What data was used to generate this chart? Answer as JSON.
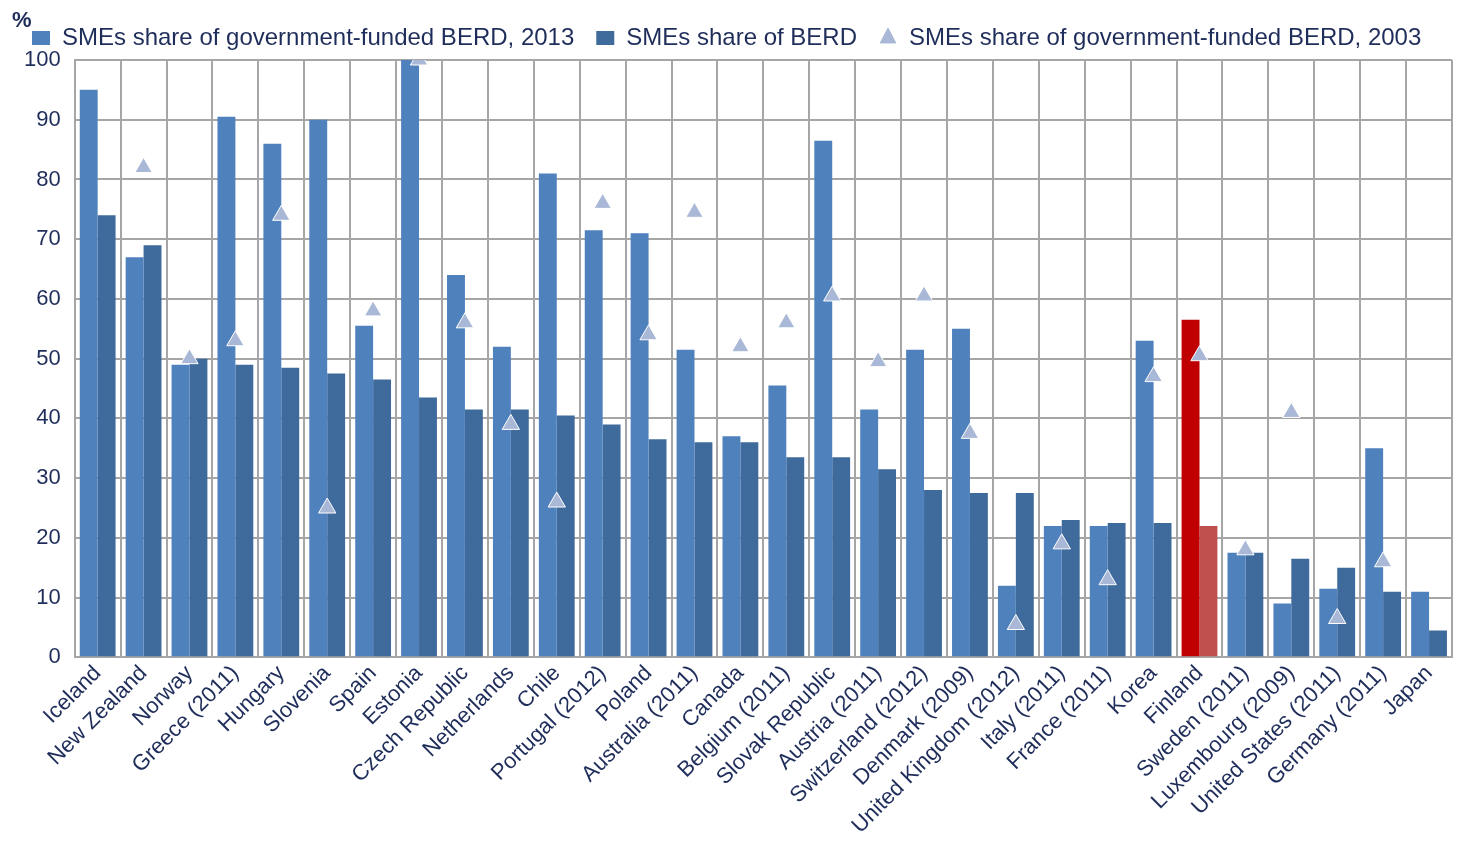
{
  "chart_data": {
    "type": "bar",
    "ylabel": "%",
    "categories": [
      "Iceland",
      "New Zealand",
      "Norway",
      "Greece (2011)",
      "Hungary",
      "Slovenia",
      "Spain",
      "Estonia",
      "Czech Republic",
      "Netherlands",
      "Chile",
      "Portugal (2012)",
      "Poland",
      "Australia (2011)",
      "Canada",
      "Belgium (2011)",
      "Slovak Republic",
      "Austria (2011)",
      "Switzerland (2012)",
      "Denmark (2009)",
      "United Kingdom (2012)",
      "Italy (2011)",
      "France (2011)",
      "Korea",
      "Finland",
      "Sweden (2011)",
      "Luxembourg (2009)",
      "United States (2011)",
      "Germany (2011)",
      "Japan"
    ],
    "series": [
      {
        "name": "SMEs share of government-funded BERD, 2013",
        "color": "#4f81bd",
        "colors": [
          "#4f81bd",
          "#4f81bd",
          "#4f81bd",
          "#4f81bd",
          "#4f81bd",
          "#4f81bd",
          "#4f81bd",
          "#4f81bd",
          "#4f81bd",
          "#4f81bd",
          "#4f81bd",
          "#4f81bd",
          "#4f81bd",
          "#4f81bd",
          "#4f81bd",
          "#4f81bd",
          "#4f81bd",
          "#4f81bd",
          "#4f81bd",
          "#4f81bd",
          "#4f81bd",
          "#4f81bd",
          "#4f81bd",
          "#4f81bd",
          "#c00000",
          "#4f81bd",
          "#4f81bd",
          "#4f81bd",
          "#4f81bd",
          "#4f81bd"
        ],
        "values": [
          95,
          67,
          49,
          90.5,
          86,
          90,
          55.5,
          100,
          64,
          52,
          81,
          71.5,
          71,
          51.5,
          37,
          45.5,
          86.5,
          41.5,
          51.5,
          55,
          12,
          22,
          22,
          53,
          56.5,
          17.5,
          9,
          11.5,
          35,
          11
        ]
      },
      {
        "name": "SMEs share of BERD",
        "color": "#3f6a9c",
        "colors": [
          "#3f6a9c",
          "#3f6a9c",
          "#3f6a9c",
          "#3f6a9c",
          "#3f6a9c",
          "#3f6a9c",
          "#3f6a9c",
          "#3f6a9c",
          "#3f6a9c",
          "#3f6a9c",
          "#3f6a9c",
          "#3f6a9c",
          "#3f6a9c",
          "#3f6a9c",
          "#3f6a9c",
          "#3f6a9c",
          "#3f6a9c",
          "#3f6a9c",
          "#3f6a9c",
          "#3f6a9c",
          "#3f6a9c",
          "#3f6a9c",
          "#3f6a9c",
          "#3f6a9c",
          "#c0504d",
          "#3f6a9c",
          "#3f6a9c",
          "#3f6a9c",
          "#3f6a9c",
          "#3f6a9c"
        ],
        "values": [
          74,
          69,
          50,
          49,
          48.5,
          47.5,
          46.5,
          43.5,
          41.5,
          41.5,
          40.5,
          39,
          36.5,
          36,
          36,
          33.5,
          33.5,
          31.5,
          28,
          27.5,
          27.5,
          23,
          22.5,
          22.5,
          22,
          17.5,
          16.5,
          15,
          11,
          4.5
        ]
      },
      {
        "name": "SMEs share of government-funded BERD, 2003",
        "type": "scatter",
        "color": "#a9b8d6",
        "values": [
          null,
          82,
          50,
          53,
          74,
          25,
          58,
          100,
          56,
          39,
          26,
          76,
          54,
          74.5,
          52,
          56,
          60.5,
          49.5,
          60.5,
          37.5,
          5.5,
          19,
          13,
          47,
          50.5,
          18,
          41,
          6.5,
          16,
          null
        ]
      }
    ],
    "marker": "triangle",
    "ylim": [
      0,
      100
    ],
    "yticks": [
      0,
      10,
      20,
      30,
      40,
      50,
      60,
      70,
      80,
      90,
      100
    ],
    "grid": true,
    "legend": "top"
  }
}
